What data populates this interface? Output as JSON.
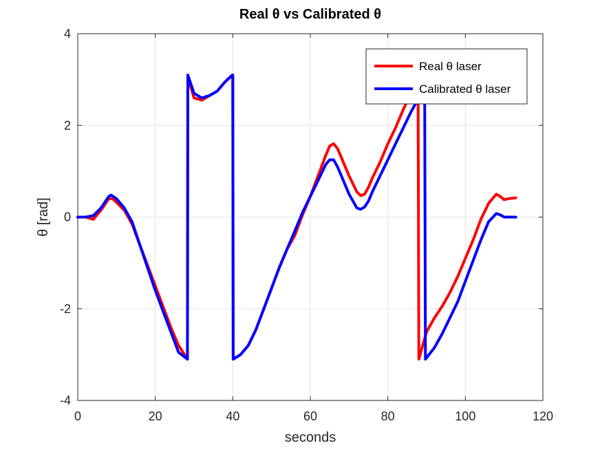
{
  "chart_data": {
    "type": "line",
    "title": "Real θ vs Calibrated θ",
    "xlabel": "seconds",
    "ylabel": "θ [rad]",
    "xlim": [
      0,
      120
    ],
    "ylim": [
      -4,
      4
    ],
    "xticks": [
      0,
      20,
      40,
      60,
      80,
      100,
      120
    ],
    "yticks": [
      -4,
      -2,
      0,
      2,
      4
    ],
    "xtick_labels": [
      "0",
      "20",
      "40",
      "60",
      "80",
      "100",
      "120"
    ],
    "ytick_labels": [
      "-4",
      "-2",
      "0",
      "2",
      "4"
    ],
    "grid": true,
    "legend_position": "top-right",
    "series": [
      {
        "name": "Real θ laser",
        "color": "#ff0000",
        "x": [
          0,
          2,
          4,
          6,
          8,
          9,
          10,
          12,
          14,
          16,
          18,
          20,
          22,
          24,
          26,
          28.3,
          28.4,
          28.6,
          30,
          32,
          34,
          36,
          38,
          39.9,
          40.0,
          40.1,
          42,
          44,
          46,
          48,
          50,
          52,
          54,
          56,
          58,
          60,
          62,
          64,
          65,
          66,
          67,
          68,
          70,
          72,
          73,
          74,
          75,
          76,
          78,
          80,
          82,
          84,
          86,
          87.6,
          87.8,
          88,
          90,
          92,
          94,
          96,
          98,
          100,
          102,
          104,
          106,
          108,
          109,
          110,
          111,
          113
        ],
        "y": [
          0,
          0,
          -0.05,
          0.15,
          0.4,
          0.4,
          0.32,
          0.15,
          -0.15,
          -0.6,
          -1.05,
          -1.5,
          -1.95,
          -2.4,
          -2.8,
          -3.1,
          3.1,
          3.0,
          2.6,
          2.55,
          2.65,
          2.75,
          2.95,
          3.1,
          3.1,
          -3.1,
          -3.0,
          -2.8,
          -2.45,
          -2.0,
          -1.55,
          -1.1,
          -0.7,
          -0.4,
          0.05,
          0.45,
          0.9,
          1.35,
          1.55,
          1.6,
          1.5,
          1.3,
          0.9,
          0.55,
          0.47,
          0.5,
          0.65,
          0.85,
          1.2,
          1.6,
          1.95,
          2.35,
          2.7,
          2.95,
          3.0,
          -3.1,
          -2.5,
          -2.2,
          -1.95,
          -1.65,
          -1.3,
          -0.9,
          -0.5,
          -0.05,
          0.3,
          0.5,
          0.45,
          0.38,
          0.4,
          0.42
        ]
      },
      {
        "name": "Calibrated θ laser",
        "color": "#0000ff",
        "x": [
          0,
          2,
          4,
          6,
          8,
          8.6,
          10,
          12,
          14,
          16,
          18,
          20,
          22,
          24,
          26,
          28.3,
          28.4,
          28.6,
          30,
          32,
          34,
          36,
          38,
          39.9,
          40.0,
          40.1,
          42,
          44,
          46,
          48,
          50,
          52,
          54,
          56,
          58,
          60,
          62,
          64,
          65,
          66,
          67,
          68,
          70,
          72,
          73,
          74,
          75,
          76,
          78,
          80,
          82,
          84,
          86,
          88,
          89.3,
          89.5,
          89.7,
          92,
          94,
          96,
          98,
          100,
          102,
          104,
          106,
          108,
          109,
          110,
          111,
          113
        ],
        "y": [
          0,
          0,
          0.03,
          0.2,
          0.45,
          0.48,
          0.4,
          0.2,
          -0.1,
          -0.6,
          -1.1,
          -1.6,
          -2.05,
          -2.5,
          -2.95,
          -3.1,
          3.1,
          3.05,
          2.7,
          2.6,
          2.65,
          2.75,
          2.95,
          3.1,
          3.1,
          -3.1,
          -3.0,
          -2.8,
          -2.45,
          -2.0,
          -1.55,
          -1.1,
          -0.7,
          -0.3,
          0.1,
          0.45,
          0.8,
          1.15,
          1.25,
          1.25,
          1.1,
          0.9,
          0.5,
          0.2,
          0.17,
          0.22,
          0.35,
          0.55,
          0.9,
          1.25,
          1.6,
          1.95,
          2.3,
          2.6,
          2.7,
          2.75,
          -3.1,
          -2.85,
          -2.55,
          -2.2,
          -1.85,
          -1.4,
          -0.95,
          -0.5,
          -0.1,
          0.08,
          0.05,
          0.0,
          0.0,
          0.0
        ]
      }
    ]
  }
}
